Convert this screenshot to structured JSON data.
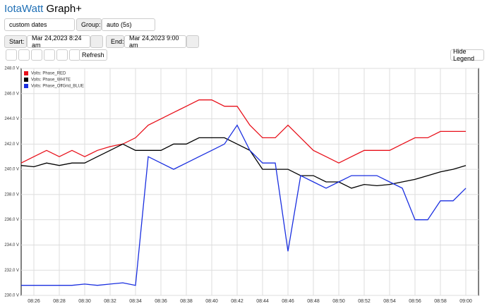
{
  "header": {
    "brand": "IotaWatt",
    "title": "Graph+"
  },
  "controls": {
    "range": "custom dates",
    "group_label": "Group:",
    "group": "auto (5s)",
    "start_label": "Start:",
    "start": "Mar 24,2023 8:24 am",
    "end_label": "End:",
    "end": "Mar 24,2023 9:00 am",
    "refresh": "Refresh",
    "hide_legend": "Hide Legend"
  },
  "chart_data": {
    "type": "line",
    "legend": "top-left",
    "grid": true,
    "x": [
      "08:25",
      "08:26",
      "08:27",
      "08:28",
      "08:29",
      "08:30",
      "08:31",
      "08:32",
      "08:33",
      "08:34",
      "08:35",
      "08:36",
      "08:37",
      "08:38",
      "08:39",
      "08:40",
      "08:41",
      "08:42",
      "08:43",
      "08:44",
      "08:45",
      "08:46",
      "08:47",
      "08:48",
      "08:49",
      "08:50",
      "08:51",
      "08:52",
      "08:53",
      "08:54",
      "08:55",
      "08:56",
      "08:57",
      "08:58",
      "08:59",
      "09:00"
    ],
    "xlim": [
      "08:25",
      "09:01"
    ],
    "xticks": [
      "08:26",
      "08:28",
      "08:30",
      "08:32",
      "08:34",
      "08:36",
      "08:38",
      "08:40",
      "08:42",
      "08:44",
      "08:46",
      "08:48",
      "08:50",
      "08:52",
      "08:54",
      "08:56",
      "08:58",
      "09:00"
    ],
    "ylim": [
      230,
      248
    ],
    "yticks": [
      {
        "value": 230,
        "label": "230.0 V"
      },
      {
        "value": 232,
        "label": "232.0 V"
      },
      {
        "value": 234,
        "label": "234.0 V"
      },
      {
        "value": 236,
        "label": "236.0 V"
      },
      {
        "value": 238,
        "label": "238.0 V"
      },
      {
        "value": 240,
        "label": "240.0 V"
      },
      {
        "value": 242,
        "label": "242.0 V"
      },
      {
        "value": 244,
        "label": "244.0 V"
      },
      {
        "value": 246,
        "label": "246.0 V"
      },
      {
        "value": 248,
        "label": "248.0 V"
      }
    ],
    "series": [
      {
        "name": "Volts: Phase_RED",
        "color": "#e8101a",
        "values": [
          240.5,
          241,
          241.5,
          241,
          241.5,
          241,
          241.5,
          241.8,
          242,
          242.5,
          243.5,
          244,
          244.5,
          245,
          245.5,
          245.5,
          245,
          245,
          243.5,
          242.5,
          242.5,
          243.5,
          242.5,
          241.5,
          241,
          240.5,
          241,
          241.5,
          241.5,
          241.5,
          242,
          242.5,
          242.5,
          243,
          243,
          243
        ]
      },
      {
        "name": "Volts: Phase_WHITE",
        "color": "#000000",
        "values": [
          240.3,
          240.2,
          240.5,
          240.3,
          240.5,
          240.5,
          241,
          241.5,
          242,
          241.5,
          241.5,
          241.5,
          242,
          242,
          242.5,
          242.5,
          242.5,
          242,
          241.5,
          240,
          240,
          240,
          239.5,
          239.5,
          239,
          239,
          238.5,
          238.8,
          238.7,
          238.8,
          239,
          239.2,
          239.5,
          239.8,
          240,
          240.3
        ]
      },
      {
        "name": "Volts: Phase_OffGrid_BLUE",
        "color": "#1a2fe0",
        "values": [
          230.8,
          230.8,
          230.8,
          230.8,
          230.8,
          230.9,
          230.8,
          230.9,
          231,
          230.8,
          241,
          240.5,
          240,
          240.5,
          241,
          241.5,
          242,
          243.5,
          241.5,
          240.5,
          240.5,
          233.5,
          239.5,
          239,
          238.5,
          239,
          239.5,
          239.5,
          239.5,
          239,
          238.5,
          236,
          236,
          237.5,
          237.5,
          238.5
        ]
      }
    ]
  }
}
